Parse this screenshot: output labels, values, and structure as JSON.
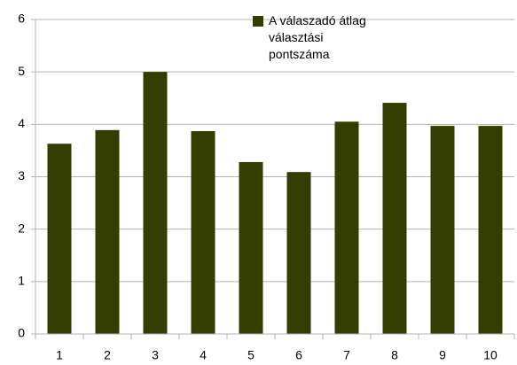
{
  "chart_data": {
    "type": "bar",
    "categories": [
      "1",
      "2",
      "3",
      "4",
      "5",
      "6",
      "7",
      "8",
      "9",
      "10"
    ],
    "series": [
      {
        "name": "A válaszadó átlag választási pontszáma",
        "color": "#333d00",
        "values": [
          3.63,
          3.89,
          5.0,
          3.87,
          3.28,
          3.09,
          4.05,
          4.41,
          3.97,
          3.97
        ]
      }
    ],
    "ylim": [
      0,
      6
    ],
    "yticks": [
      0,
      1,
      2,
      3,
      4,
      5,
      6
    ],
    "grid": true,
    "legend": "top"
  }
}
